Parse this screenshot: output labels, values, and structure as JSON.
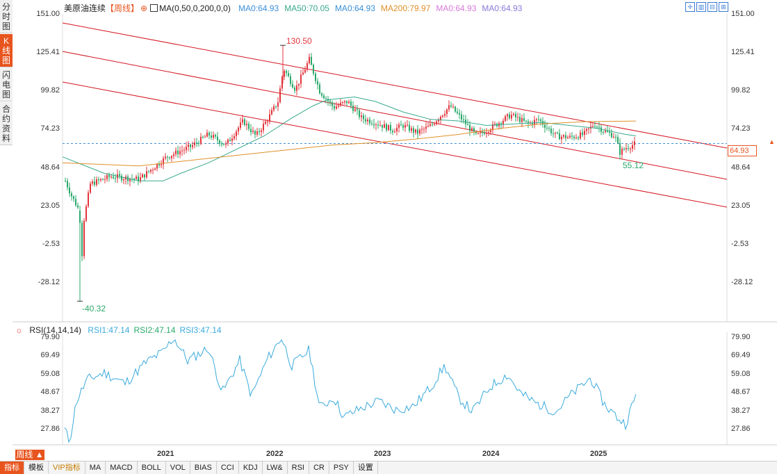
{
  "left_tabs": [
    {
      "label": "分时图",
      "active": false
    },
    {
      "label": "K线图",
      "active": true
    },
    {
      "label": "闪电图",
      "active": false
    },
    {
      "label": "合约资料",
      "active": false
    }
  ],
  "header": {
    "instrument": "美原油连续",
    "period_tag": "【周线】",
    "ma_params": "MA(0,50,0,200,0,0)",
    "ma_values": [
      {
        "label": "MA0:64.93",
        "color": "#3a8fd8"
      },
      {
        "label": "MA50:70.05",
        "color": "#38a98c"
      },
      {
        "label": "MA0:64.93",
        "color": "#3a8fd8"
      },
      {
        "label": "MA200:79.97",
        "color": "#e0902a"
      },
      {
        "label": "MA0:64.93",
        "color": "#d67ad8"
      },
      {
        "label": "MA0:64.93",
        "color": "#8a7ad8"
      }
    ]
  },
  "toolbar_icons": [
    "crosshair-icon",
    "bar-chart-icon",
    "zoom-icon",
    "expand-icon"
  ],
  "price_axis": {
    "ticks": [
      "151.00",
      "125.41",
      "99.82",
      "74.23",
      "48.64",
      "23.05",
      "-2.53",
      "-28.12"
    ],
    "current": "64.93",
    "ylim": [
      -40.32,
      151.0
    ]
  },
  "annotations": {
    "high": "130.50",
    "low": "-40.32",
    "recent_low": "55.12"
  },
  "rsi": {
    "title": "RSI(14,14,14)",
    "values_text": [
      "RSI1:47.14",
      "RSI2:47.14",
      "RSI3:47.14"
    ],
    "ticks": [
      "79.90",
      "69.49",
      "59.08",
      "48.67",
      "38.27",
      "27.86"
    ]
  },
  "x_axis": {
    "period_button": "周线 ▲",
    "years": [
      "2021",
      "2022",
      "2023",
      "2024",
      "2025"
    ]
  },
  "bottom_tabs": [
    "指标",
    "模板",
    "VIP指标",
    "MA",
    "MACD",
    "BOLL",
    "VOL",
    "BIAS",
    "CCI",
    "KDJ",
    "LW&",
    "RSI",
    "CR",
    "PSY",
    "设置"
  ],
  "colors": {
    "up": "#e2343c",
    "down": "#2aa86a",
    "channel": "#d4141e",
    "ma50": "#38a98c",
    "ma200": "#e0902a",
    "rsi": "#3aaadc",
    "accent": "#e8541e"
  }
}
